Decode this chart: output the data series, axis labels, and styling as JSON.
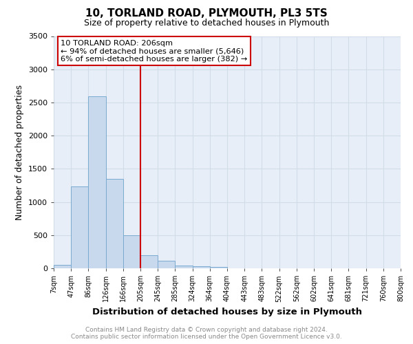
{
  "title": "10, TORLAND ROAD, PLYMOUTH, PL3 5TS",
  "subtitle": "Size of property relative to detached houses in Plymouth",
  "xlabel": "Distribution of detached houses by size in Plymouth",
  "ylabel": "Number of detached properties",
  "footnote1": "Contains HM Land Registry data © Crown copyright and database right 2024.",
  "footnote2": "Contains public sector information licensed under the Open Government Licence v3.0.",
  "bin_labels": [
    "7sqm",
    "47sqm",
    "86sqm",
    "126sqm",
    "166sqm",
    "205sqm",
    "245sqm",
    "285sqm",
    "324sqm",
    "364sqm",
    "404sqm",
    "443sqm",
    "483sqm",
    "522sqm",
    "562sqm",
    "602sqm",
    "641sqm",
    "681sqm",
    "721sqm",
    "760sqm",
    "800sqm"
  ],
  "bar_values": [
    50,
    1230,
    2590,
    1350,
    500,
    200,
    110,
    45,
    30,
    25,
    5,
    5,
    2,
    0,
    0,
    0,
    0,
    0,
    0,
    0
  ],
  "bar_color": "#c9d9ed",
  "bar_edge_color": "#7aaad0",
  "vline_x": 5,
  "vline_color": "#cc0000",
  "ylim": [
    0,
    3500
  ],
  "yticks": [
    0,
    500,
    1000,
    1500,
    2000,
    2500,
    3000,
    3500
  ],
  "annotation_title": "10 TORLAND ROAD: 206sqm",
  "annotation_line1": "← 94% of detached houses are smaller (5,646)",
  "annotation_line2": "6% of semi-detached houses are larger (382) →",
  "annotation_box_facecolor": "#ffffff",
  "annotation_box_edgecolor": "#cc0000",
  "grid_color": "#d0dde8",
  "plot_bg_color": "#e8eef8",
  "fig_bg_color": "#ffffff"
}
